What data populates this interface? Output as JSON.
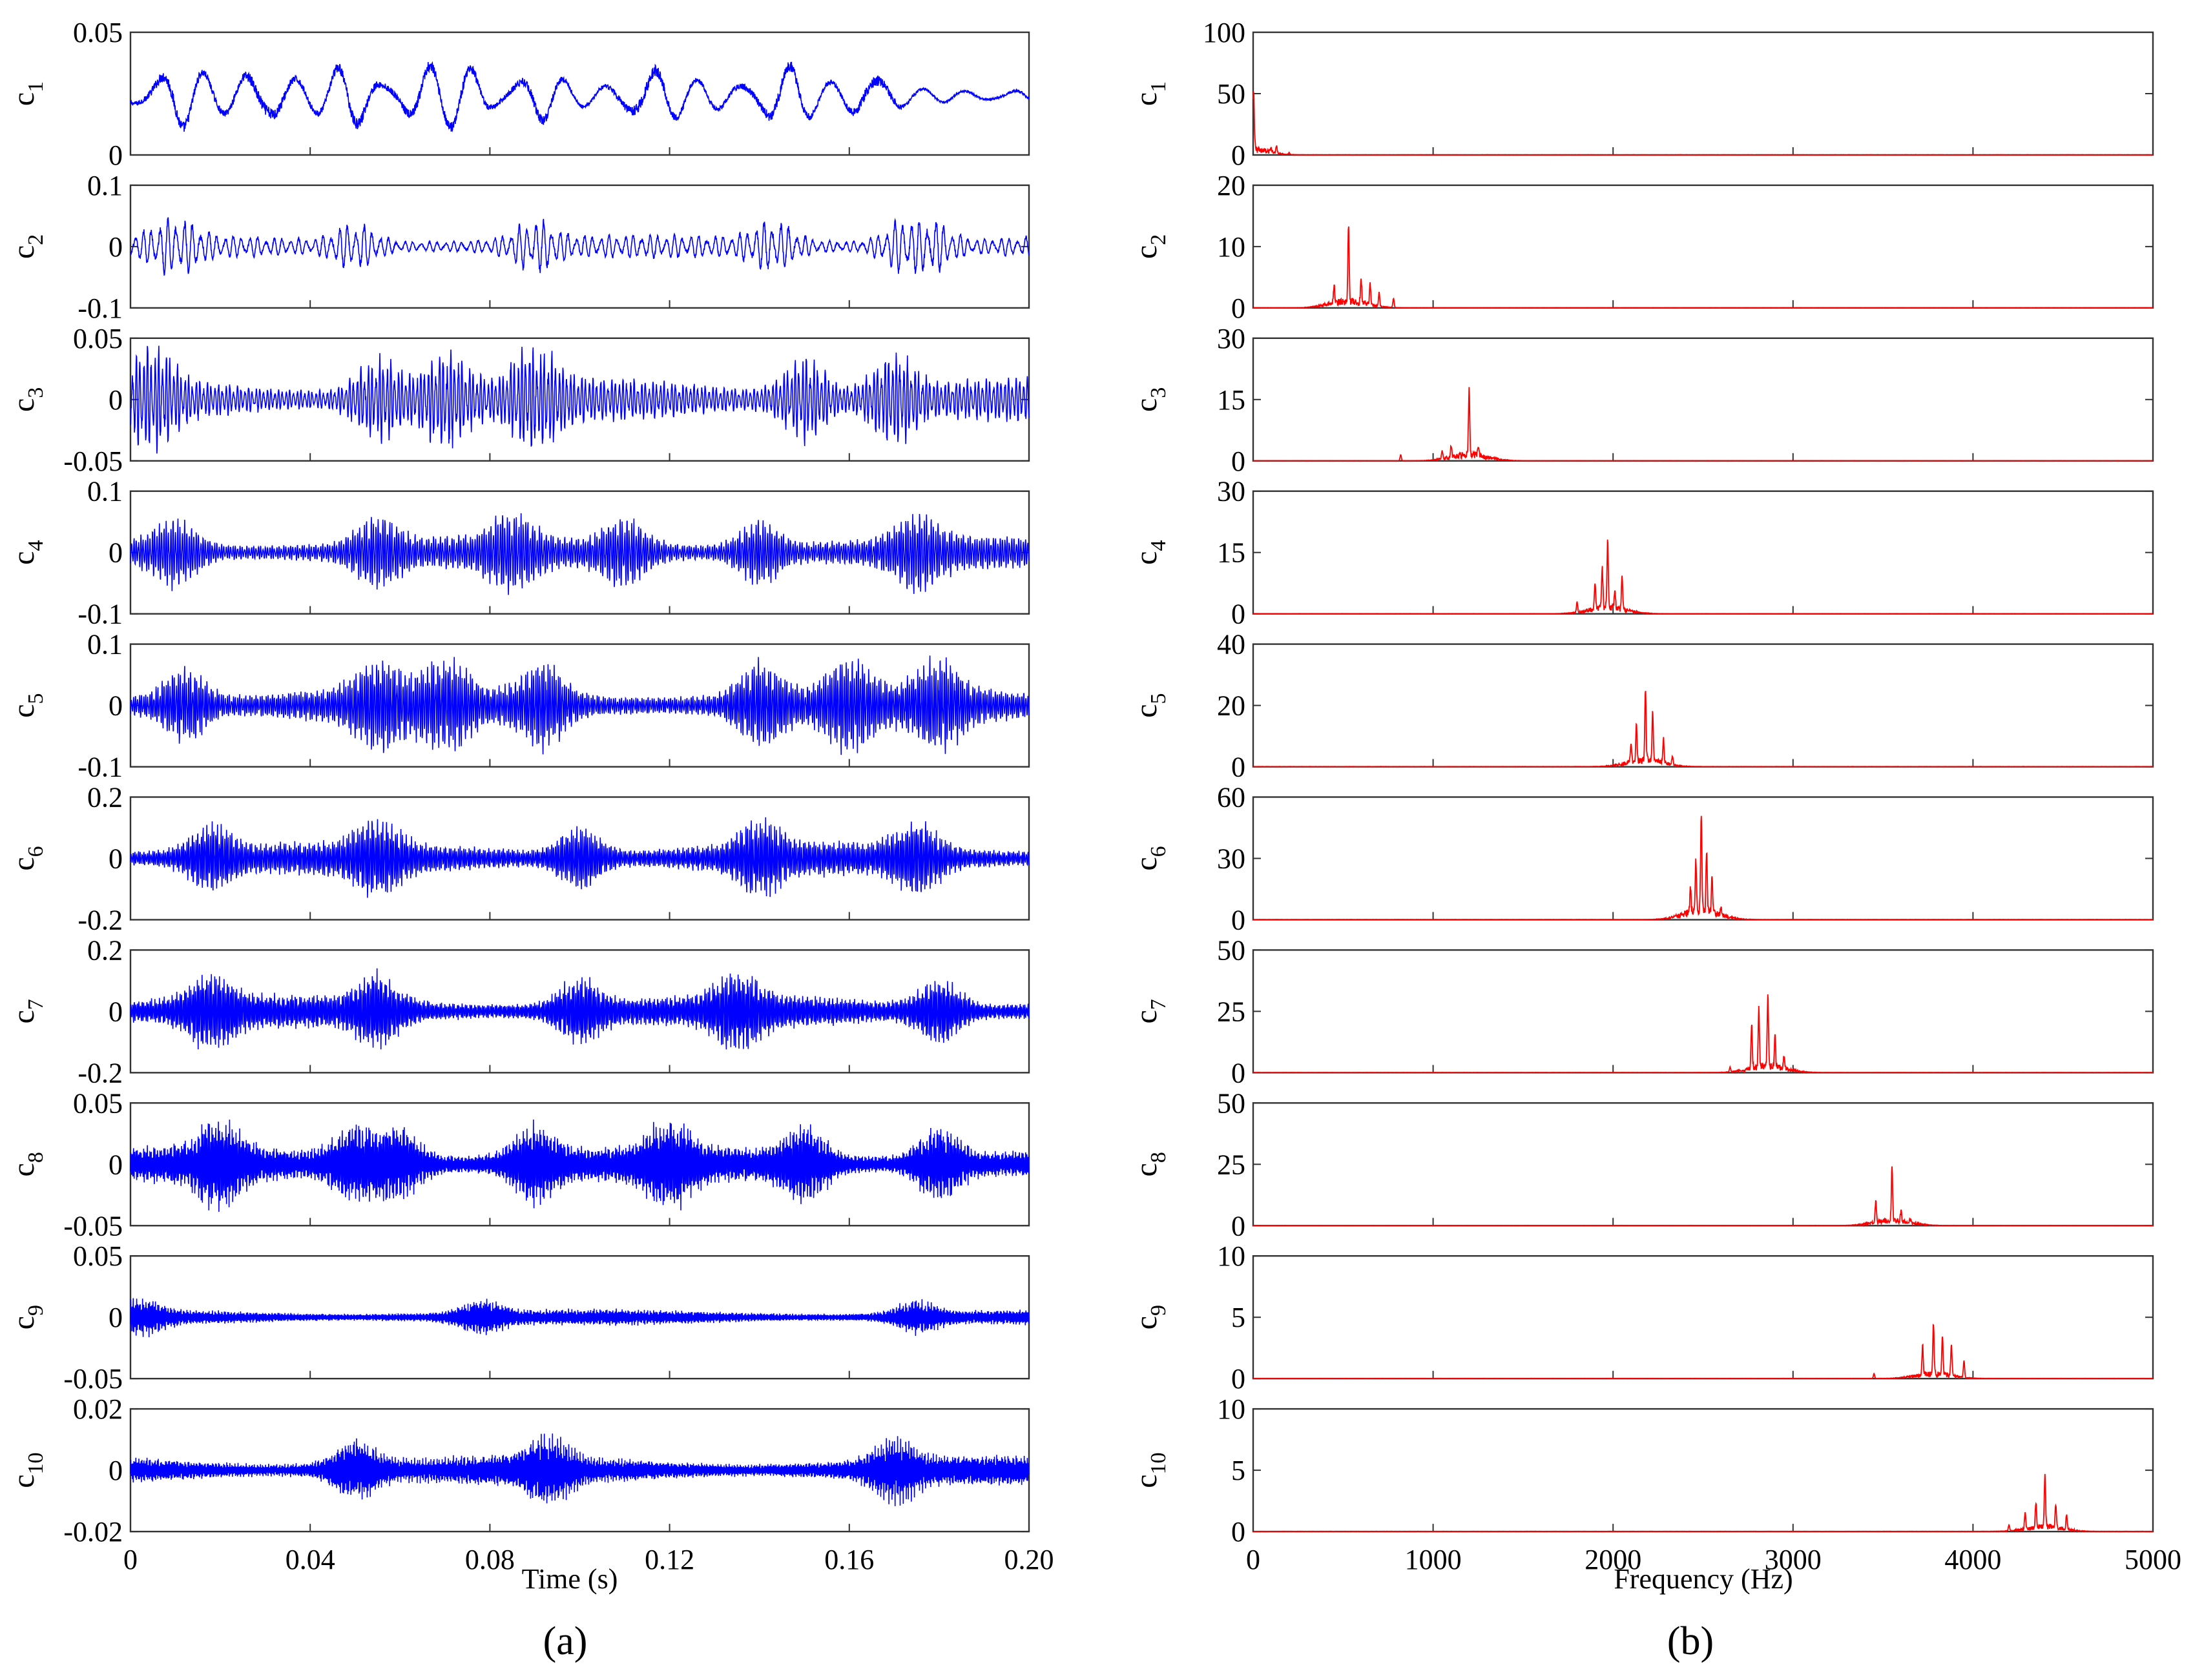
{
  "figure": {
    "panel_labels": [
      "(a)",
      "(b)"
    ]
  },
  "chart_data": [
    {
      "type": "line",
      "panel": "(a)",
      "xlabel": "Time (s)",
      "xlim": [
        0,
        0.2
      ],
      "xticks": [
        0,
        0.04,
        0.08,
        0.12,
        0.16,
        0.2
      ],
      "xticklabels": [
        "0",
        "0.04",
        "0.08",
        "0.12",
        "0.16",
        "0.20"
      ],
      "series_color": "#0000ff",
      "components": [
        {
          "name": "c1",
          "ylim": [
            0,
            0.05
          ],
          "yticks": [
            0,
            0.05
          ],
          "yticklabels": [
            "0",
            "0.05"
          ],
          "mean": 0.024,
          "amplitude": 0.012,
          "carrier_cycles": 20,
          "peak_times": [
            0.01,
            0.03,
            0.05,
            0.065,
            0.075,
            0.09,
            0.115,
            0.145,
            0.165
          ]
        },
        {
          "name": "c2",
          "ylim": [
            -0.1,
            0.1
          ],
          "yticks": [
            -0.1,
            0,
            0.1
          ],
          "yticklabels": [
            "-0.1",
            "0",
            "0.1"
          ],
          "mean": 0,
          "amplitude": 0.035,
          "carrier_cycles": 110,
          "peak_times": [
            0.01,
            0.05,
            0.09,
            0.143,
            0.172,
            0.178
          ]
        },
        {
          "name": "c3",
          "ylim": [
            -0.05,
            0.05
          ],
          "yticks": [
            -0.05,
            0,
            0.05
          ],
          "yticklabels": [
            "-0.05",
            "0",
            "0.05"
          ],
          "mean": 0,
          "amplitude": 0.033,
          "carrier_cycles": 240,
          "peak_times": [
            0.005,
            0.055,
            0.07,
            0.09,
            0.15,
            0.17
          ]
        },
        {
          "name": "c4",
          "ylim": [
            -0.1,
            0.1
          ],
          "yticks": [
            -0.1,
            0,
            0.1
          ],
          "yticklabels": [
            "-0.1",
            "0",
            "0.1"
          ],
          "mean": 0,
          "amplitude": 0.05,
          "carrier_cycles": 390,
          "peak_times": [
            0.01,
            0.055,
            0.085,
            0.11,
            0.14,
            0.175
          ]
        },
        {
          "name": "c5",
          "ylim": [
            -0.1,
            0.1
          ],
          "yticks": [
            -0.1,
            0,
            0.1
          ],
          "yticklabels": [
            "-0.1",
            "0",
            "0.1"
          ],
          "mean": 0,
          "amplitude": 0.06,
          "carrier_cycles": 440,
          "peak_times": [
            0.012,
            0.055,
            0.07,
            0.092,
            0.14,
            0.16,
            0.18
          ]
        },
        {
          "name": "c6",
          "ylim": [
            -0.2,
            0.2
          ],
          "yticks": [
            -0.2,
            0,
            0.2
          ],
          "yticklabels": [
            "-0.2",
            "0",
            "0.2"
          ],
          "mean": 0,
          "amplitude": 0.1,
          "carrier_cycles": 500,
          "peak_times": [
            0.018,
            0.055,
            0.1,
            0.14,
            0.175
          ]
        },
        {
          "name": "c7",
          "ylim": [
            -0.2,
            0.2
          ],
          "yticks": [
            -0.2,
            0,
            0.2
          ],
          "yticklabels": [
            "-0.2",
            "0",
            "0.2"
          ],
          "mean": 0,
          "amplitude": 0.1,
          "carrier_cycles": 570,
          "peak_times": [
            0.018,
            0.055,
            0.1,
            0.135,
            0.18
          ]
        },
        {
          "name": "c8",
          "ylim": [
            -0.05,
            0.05
          ],
          "yticks": [
            -0.05,
            0,
            0.05
          ],
          "yticklabels": [
            "-0.05",
            "0",
            "0.05"
          ],
          "mean": 0,
          "amplitude": 0.028,
          "carrier_cycles": 710,
          "peak_times": [
            0.02,
            0.05,
            0.06,
            0.09,
            0.12,
            0.15,
            0.18
          ]
        },
        {
          "name": "c9",
          "ylim": [
            -0.05,
            0.05
          ],
          "yticks": [
            -0.05,
            0,
            0.05
          ],
          "yticklabels": [
            "-0.05",
            "0",
            "0.05"
          ],
          "mean": 0,
          "amplitude": 0.012,
          "carrier_cycles": 770,
          "peak_times": [
            0.002,
            0.078,
            0.175
          ]
        },
        {
          "name": "c10",
          "ylim": [
            -0.02,
            0.02
          ],
          "yticks": [
            -0.02,
            0,
            0.02
          ],
          "yticklabels": [
            "-0.02",
            "0",
            "0.02"
          ],
          "mean": 0,
          "amplitude": 0.009,
          "carrier_cycles": 880,
          "peak_times": [
            0.05,
            0.093,
            0.17
          ]
        }
      ]
    },
    {
      "type": "line",
      "panel": "(b)",
      "xlabel": "Frequency (Hz)",
      "xlim": [
        0,
        5000
      ],
      "xticks": [
        0,
        1000,
        2000,
        3000,
        4000,
        5000
      ],
      "xticklabels": [
        "0",
        "1000",
        "2000",
        "3000",
        "4000",
        "5000"
      ],
      "series_color": "#ff0000",
      "spectra": [
        {
          "name": "c1",
          "ylim": [
            0,
            100
          ],
          "yticks": [
            0,
            50,
            100
          ],
          "yticklabels": [
            "0",
            "50",
            "100"
          ],
          "peaks": [
            {
              "f": 2,
              "a": 48
            },
            {
              "f": 100,
              "a": 4
            },
            {
              "f": 130,
              "a": 6
            },
            {
              "f": 200,
              "a": 1.5
            }
          ]
        },
        {
          "name": "c2",
          "ylim": [
            0,
            20
          ],
          "yticks": [
            0,
            10,
            20
          ],
          "yticklabels": [
            "0",
            "10",
            "20"
          ],
          "peaks": [
            {
              "f": 530,
              "a": 12.3
            },
            {
              "f": 600,
              "a": 3.8
            },
            {
              "f": 650,
              "a": 3.4
            },
            {
              "f": 450,
              "a": 2.8
            },
            {
              "f": 700,
              "a": 2.2
            },
            {
              "f": 780,
              "a": 1.5
            }
          ]
        },
        {
          "name": "c3",
          "ylim": [
            0,
            30
          ],
          "yticks": [
            0,
            15,
            30
          ],
          "yticklabels": [
            "0",
            "15",
            "30"
          ],
          "peaks": [
            {
              "f": 1200,
              "a": 16
            },
            {
              "f": 1100,
              "a": 3
            },
            {
              "f": 1250,
              "a": 2.5
            },
            {
              "f": 820,
              "a": 1.5
            },
            {
              "f": 1050,
              "a": 2
            }
          ]
        },
        {
          "name": "c4",
          "ylim": [
            0,
            30
          ],
          "yticks": [
            0,
            15,
            30
          ],
          "yticklabels": [
            "0",
            "15",
            "30"
          ],
          "peaks": [
            {
              "f": 1970,
              "a": 17
            },
            {
              "f": 1940,
              "a": 10
            },
            {
              "f": 2050,
              "a": 8.5
            },
            {
              "f": 1900,
              "a": 6
            },
            {
              "f": 2010,
              "a": 5
            },
            {
              "f": 1800,
              "a": 2.5
            }
          ]
        },
        {
          "name": "c5",
          "ylim": [
            0,
            40
          ],
          "yticks": [
            0,
            20,
            40
          ],
          "yticklabels": [
            "0",
            "20",
            "40"
          ],
          "peaks": [
            {
              "f": 2180,
              "a": 23
            },
            {
              "f": 2220,
              "a": 16
            },
            {
              "f": 2130,
              "a": 12
            },
            {
              "f": 2280,
              "a": 8
            },
            {
              "f": 2100,
              "a": 6
            },
            {
              "f": 2330,
              "a": 3
            }
          ]
        },
        {
          "name": "c6",
          "ylim": [
            0,
            60
          ],
          "yticks": [
            0,
            30,
            60
          ],
          "yticklabels": [
            "0",
            "30",
            "60"
          ],
          "peaks": [
            {
              "f": 2490,
              "a": 47
            },
            {
              "f": 2520,
              "a": 30
            },
            {
              "f": 2460,
              "a": 25
            },
            {
              "f": 2550,
              "a": 18
            },
            {
              "f": 2430,
              "a": 12
            },
            {
              "f": 2600,
              "a": 4
            }
          ]
        },
        {
          "name": "c7",
          "ylim": [
            0,
            50
          ],
          "yticks": [
            0,
            25,
            50
          ],
          "yticklabels": [
            "0",
            "25",
            "50"
          ],
          "peaks": [
            {
              "f": 2860,
              "a": 29
            },
            {
              "f": 2810,
              "a": 24
            },
            {
              "f": 2770,
              "a": 18
            },
            {
              "f": 2900,
              "a": 12
            },
            {
              "f": 2950,
              "a": 5
            },
            {
              "f": 2650,
              "a": 2
            }
          ]
        },
        {
          "name": "c8",
          "ylim": [
            0,
            50
          ],
          "yticks": [
            0,
            25,
            50
          ],
          "yticklabels": [
            "0",
            "25",
            "50"
          ],
          "peaks": [
            {
              "f": 3550,
              "a": 22
            },
            {
              "f": 3460,
              "a": 9
            },
            {
              "f": 3600,
              "a": 4
            },
            {
              "f": 3650,
              "a": 2
            }
          ]
        },
        {
          "name": "c9",
          "ylim": [
            0,
            10
          ],
          "yticks": [
            0,
            5,
            10
          ],
          "yticklabels": [
            "0",
            "5",
            "10"
          ],
          "peaks": [
            {
              "f": 3780,
              "a": 4.2
            },
            {
              "f": 3830,
              "a": 3.2
            },
            {
              "f": 3720,
              "a": 2.4
            },
            {
              "f": 3880,
              "a": 2.6
            },
            {
              "f": 3950,
              "a": 1.4
            },
            {
              "f": 3450,
              "a": 0.4
            }
          ]
        },
        {
          "name": "c10",
          "ylim": [
            0,
            10
          ],
          "yticks": [
            0,
            5,
            10
          ],
          "yticklabels": [
            "0",
            "5",
            "10"
          ],
          "peaks": [
            {
              "f": 4400,
              "a": 4.3
            },
            {
              "f": 4350,
              "a": 2
            },
            {
              "f": 4460,
              "a": 1.9
            },
            {
              "f": 4290,
              "a": 1.4
            },
            {
              "f": 4520,
              "a": 1.2
            },
            {
              "f": 4200,
              "a": 0.5
            }
          ]
        }
      ]
    }
  ]
}
